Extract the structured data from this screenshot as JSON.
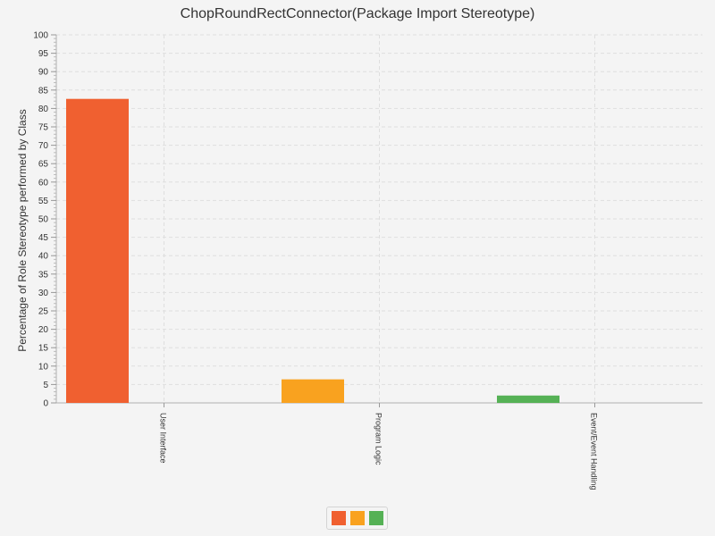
{
  "chart_data": {
    "type": "bar",
    "title": "ChopRoundRectConnector(Package Import Stereotype)",
    "xlabel": "",
    "ylabel": "Percentage of Role Stereotype performed by Class",
    "categories": [
      "User Interface",
      "Program Logic",
      "Event/Event Handling"
    ],
    "values": [
      82.6,
      6.4,
      2.0
    ],
    "colors": [
      "#f06030",
      "#f9a21f",
      "#55b155"
    ],
    "ylim": [
      0,
      100
    ],
    "yticks": [
      0,
      5,
      10,
      15,
      20,
      25,
      30,
      35,
      40,
      45,
      50,
      55,
      60,
      65,
      70,
      75,
      80,
      85,
      90,
      95,
      100
    ],
    "ytick_labels": [
      "0",
      "5",
      "10",
      "15",
      "20",
      "25",
      "30",
      "35",
      "40",
      "45",
      "50",
      "55",
      "60",
      "65",
      "70",
      "75",
      "80",
      "85",
      "90",
      "95",
      "100"
    ],
    "grid": true,
    "legend": {
      "placement": "bottom-center",
      "entries": [
        "",
        "",
        ""
      ]
    }
  }
}
